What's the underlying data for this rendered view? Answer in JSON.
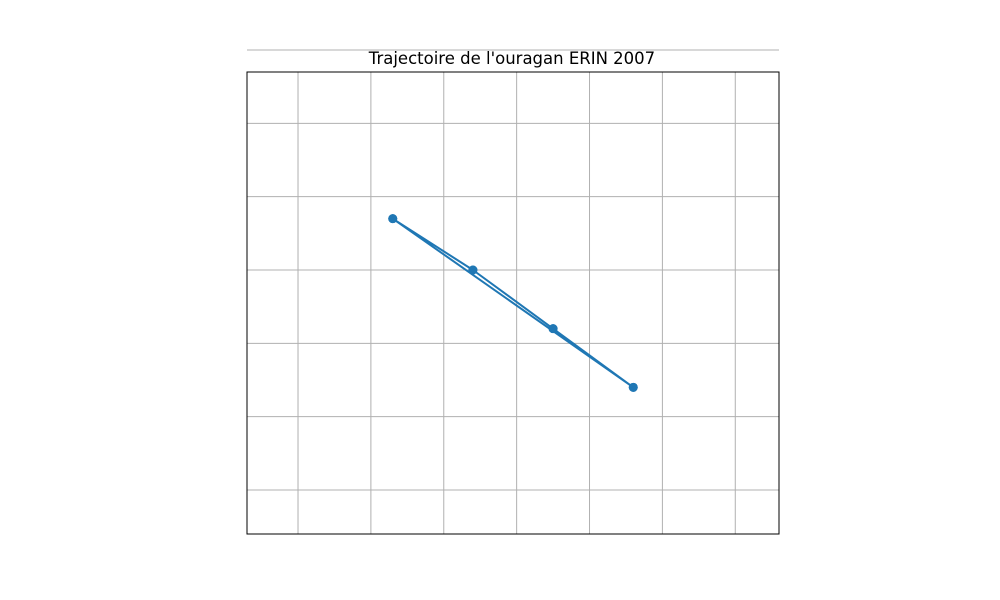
{
  "chart_data": {
    "type": "line",
    "title": "Trajectoire de l'ouragan ERIN 2007",
    "xlabel": "",
    "ylabel": "",
    "grid": true,
    "axis_tick_labels_visible": false,
    "x_gridlines": [
      -100,
      -99,
      -98,
      -97,
      -96,
      -95,
      -94
    ],
    "y_gridlines": [
      22,
      23,
      24,
      25,
      26,
      27,
      28
    ],
    "xlim": [
      -100.7,
      -93.4
    ],
    "ylim": [
      21.4,
      27.7
    ],
    "line_color": "#1f77b4",
    "grid_color": "#b0b0b0",
    "series": [
      {
        "marker": "circle",
        "x": [
          -98.7,
          -97.6,
          -96.5,
          -95.4,
          -98.7,
          -97.6,
          -96.5,
          -95.4
        ],
        "y": [
          25.7,
          25.0,
          24.2,
          23.4,
          25.7,
          25.0,
          24.2,
          23.4
        ]
      }
    ]
  }
}
